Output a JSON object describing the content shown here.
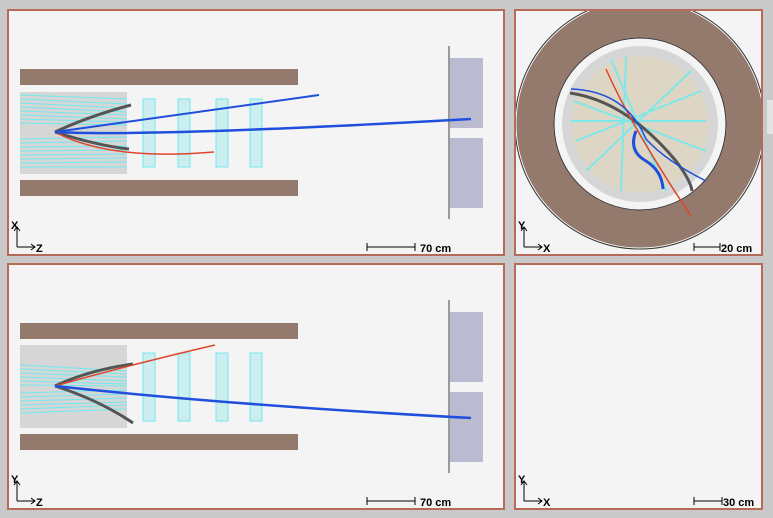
{
  "views": {
    "xz": {
      "axis_vertical": "X",
      "axis_horizontal": "Z",
      "scale": "70 cm"
    },
    "xy": {
      "axis_vertical": "Y",
      "axis_horizontal": "X",
      "scale": "20 cm"
    },
    "yz": {
      "axis_vertical": "Y",
      "axis_horizontal": "Z",
      "scale": "70 cm"
    },
    "empty": {
      "axis_vertical": "Y",
      "axis_horizontal": "X",
      "scale": "30 cm"
    }
  },
  "colors": {
    "panel_background": "#f4f4f4",
    "panel_border": "#b86a58",
    "magnet": "#947a6c",
    "calorimeter": "#babad0",
    "tracker": "#d6d6d6",
    "hits": "#6fe9f0",
    "track_blue": "#1f4fdc",
    "track_red": "#e0442a",
    "track_gray": "#555555"
  }
}
